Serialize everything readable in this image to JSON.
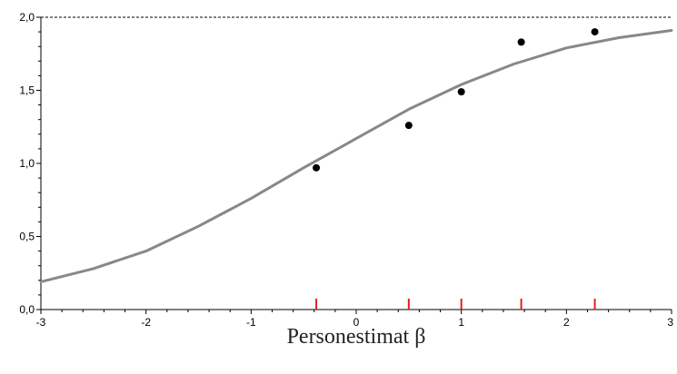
{
  "chart_data": {
    "type": "scatter",
    "title": "",
    "xlabel": "Personestimat β",
    "ylabel": "",
    "xlim": [
      -3,
      3
    ],
    "ylim": [
      0,
      2
    ],
    "x_ticks": [
      "-3",
      "-2",
      "-1",
      "0",
      "1",
      "2",
      "3"
    ],
    "y_ticks": [
      "0,0",
      "0,5",
      "1,0",
      "1,5",
      "2,0"
    ],
    "reference_line": {
      "y": 2.0,
      "style": "dashed"
    },
    "series": [
      {
        "kind": "line",
        "color": "#888888",
        "x": [
          -3,
          -2.5,
          -2,
          -1.5,
          -1,
          -0.5,
          0,
          0.5,
          1,
          1.5,
          2,
          2.5,
          3
        ],
        "y": [
          0.19,
          0.28,
          0.4,
          0.57,
          0.76,
          0.97,
          1.17,
          1.37,
          1.54,
          1.68,
          1.79,
          1.86,
          1.91
        ]
      },
      {
        "kind": "points",
        "color": "#000000",
        "x": [
          -0.38,
          0.5,
          1.0,
          1.57,
          2.27
        ],
        "y": [
          0.97,
          1.26,
          1.49,
          1.83,
          1.9
        ]
      }
    ],
    "rug_marks": {
      "color": "#e02020",
      "x": [
        -0.38,
        0.5,
        1.0,
        1.57,
        2.27
      ]
    }
  }
}
